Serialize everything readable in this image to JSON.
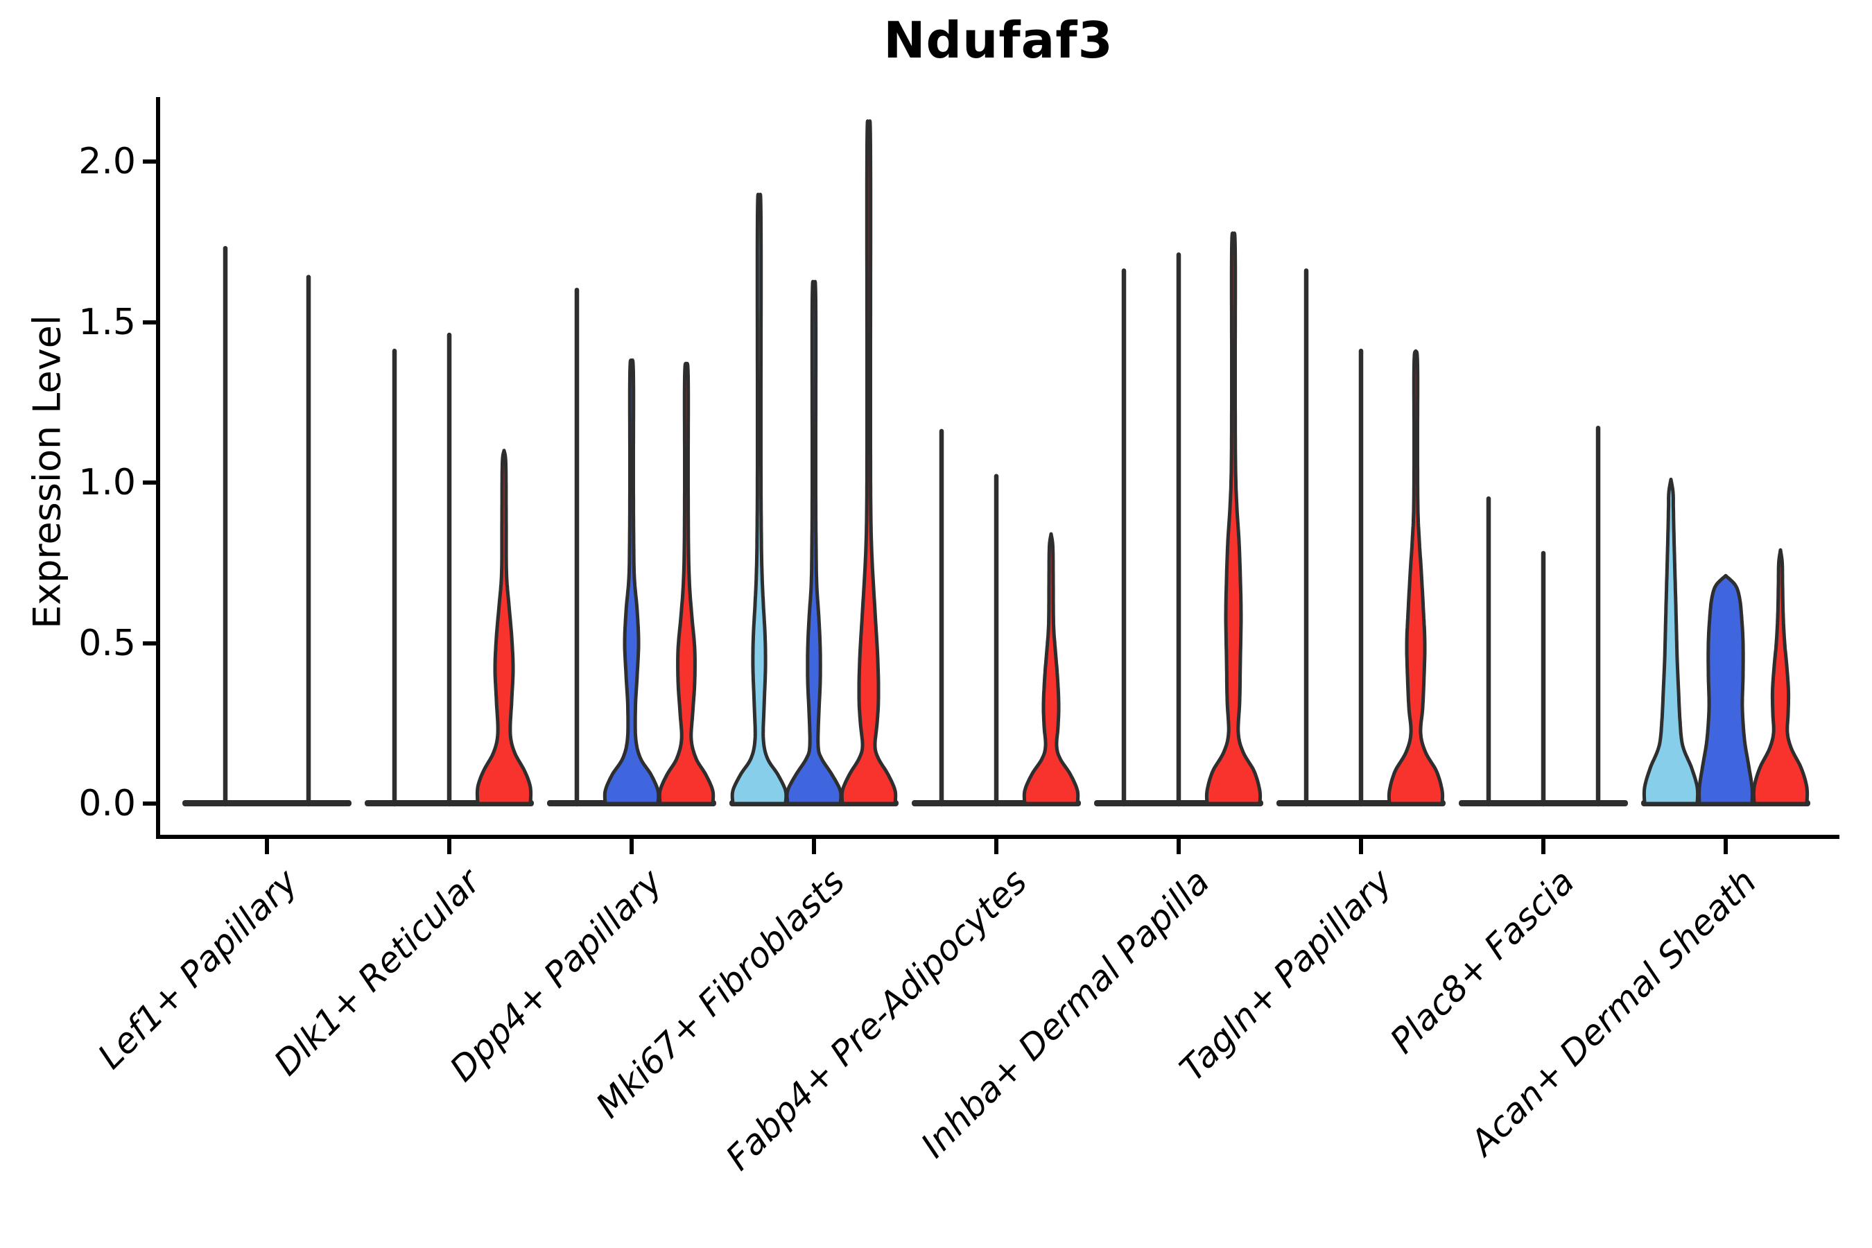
{
  "title": "Ndufaf3",
  "axes": {
    "ylabel": "Expression Level",
    "ytick_labels": [
      "0.0",
      "0.5",
      "1.0",
      "1.5",
      "2.0"
    ]
  },
  "palette": {
    "skyblue": "#87CEEB",
    "royalblue": "#4066DF",
    "red": "#F8322C",
    "edge": "#2E2E2E"
  },
  "chart_data": {
    "type": "violin",
    "title": "Ndufaf3",
    "xlabel": "",
    "ylabel": "Expression Level",
    "yticks": [
      0.0,
      0.5,
      1.0,
      1.5,
      2.0
    ],
    "ylim": [
      -0.1,
      2.2
    ],
    "grid": false,
    "legend": "none",
    "hue_order": [
      "skyblue",
      "royalblue",
      "red"
    ],
    "categories": [
      "Lef1+ Papillary",
      "Dlk1+ Reticular",
      "Dpp4+ Papillary",
      "Mki67+ Fibroblasts",
      "Fabp4+ Pre-Adipocytes",
      "Inhba+ Dermal Papilla",
      "Tagln+ Papillary",
      "Plac8+ Fascia",
      "Acan+ Dermal Sheath"
    ],
    "groups": [
      {
        "category": "Lef1+ Papillary",
        "violins": [
          {
            "hue": "skyblue",
            "kind": "spike",
            "max": 1.73
          },
          {
            "hue": "red",
            "kind": "spike",
            "max": 1.64
          }
        ]
      },
      {
        "category": "Dlk1+ Reticular",
        "violins": [
          {
            "hue": "skyblue",
            "kind": "spike",
            "max": 1.41
          },
          {
            "hue": "royalblue",
            "kind": "spike",
            "max": 1.46
          },
          {
            "hue": "red",
            "kind": "body",
            "max": 1.1,
            "profile": [
              [
                0,
                38
              ],
              [
                0.05,
                38
              ],
              [
                0.1,
                30
              ],
              [
                0.16,
                15
              ],
              [
                0.22,
                9
              ],
              [
                0.32,
                11
              ],
              [
                0.42,
                13
              ],
              [
                0.52,
                11
              ],
              [
                0.62,
                7
              ],
              [
                0.72,
                3.5
              ],
              [
                0.9,
                3
              ],
              [
                1.06,
                2.5
              ],
              [
                1.1,
                0
              ]
            ]
          }
        ]
      },
      {
        "category": "Dpp4+ Papillary",
        "violins": [
          {
            "hue": "skyblue",
            "kind": "spike",
            "max": 1.6
          },
          {
            "hue": "royalblue",
            "kind": "body",
            "max": 1.38,
            "profile": [
              [
                0,
                38
              ],
              [
                0.04,
                38
              ],
              [
                0.09,
                28
              ],
              [
                0.14,
                13
              ],
              [
                0.2,
                6
              ],
              [
                0.3,
                5.5
              ],
              [
                0.4,
                8
              ],
              [
                0.5,
                10
              ],
              [
                0.6,
                8
              ],
              [
                0.7,
                4
              ],
              [
                0.8,
                3
              ],
              [
                1.0,
                2.5
              ],
              [
                1.34,
                2.5
              ],
              [
                1.38,
                0
              ]
            ]
          },
          {
            "hue": "red",
            "kind": "body",
            "max": 1.37,
            "profile": [
              [
                0,
                38
              ],
              [
                0.04,
                38
              ],
              [
                0.09,
                28
              ],
              [
                0.14,
                14
              ],
              [
                0.2,
                7
              ],
              [
                0.28,
                9
              ],
              [
                0.38,
                12
              ],
              [
                0.48,
                12
              ],
              [
                0.58,
                8
              ],
              [
                0.68,
                4.5
              ],
              [
                0.8,
                3
              ],
              [
                1.0,
                2.5
              ],
              [
                1.33,
                2.5
              ],
              [
                1.37,
                0
              ]
            ]
          }
        ]
      },
      {
        "category": "Mki67+ Fibroblasts",
        "violins": [
          {
            "hue": "skyblue",
            "kind": "body",
            "max": 1.87,
            "profile": [
              [
                0,
                38
              ],
              [
                0.04,
                38
              ],
              [
                0.09,
                27
              ],
              [
                0.14,
                12
              ],
              [
                0.2,
                6
              ],
              [
                0.3,
                7
              ],
              [
                0.42,
                9
              ],
              [
                0.52,
                8.5
              ],
              [
                0.62,
                6
              ],
              [
                0.72,
                4
              ],
              [
                0.85,
                3
              ],
              [
                1.1,
                2.5
              ],
              [
                1.83,
                2.5
              ],
              [
                1.87,
                0
              ]
            ]
          },
          {
            "hue": "royalblue",
            "kind": "body",
            "max": 1.61,
            "profile": [
              [
                0,
                38
              ],
              [
                0.04,
                38
              ],
              [
                0.09,
                26
              ],
              [
                0.14,
                11
              ],
              [
                0.18,
                6
              ],
              [
                0.28,
                7
              ],
              [
                0.38,
                9
              ],
              [
                0.48,
                9
              ],
              [
                0.58,
                7
              ],
              [
                0.68,
                4
              ],
              [
                0.8,
                3
              ],
              [
                1.0,
                2.5
              ],
              [
                1.57,
                2.5
              ],
              [
                1.61,
                0
              ]
            ]
          },
          {
            "hue": "red",
            "kind": "body",
            "max": 2.09,
            "profile": [
              [
                0,
                38
              ],
              [
                0.04,
                38
              ],
              [
                0.09,
                28
              ],
              [
                0.14,
                14
              ],
              [
                0.18,
                9
              ],
              [
                0.25,
                12
              ],
              [
                0.33,
                14
              ],
              [
                0.45,
                13
              ],
              [
                0.6,
                9
              ],
              [
                0.75,
                5
              ],
              [
                0.9,
                3
              ],
              [
                1.2,
                2.5
              ],
              [
                2.05,
                2.5
              ],
              [
                2.09,
                0
              ]
            ]
          }
        ]
      },
      {
        "category": "Fabp4+ Pre-Adipocytes",
        "violins": [
          {
            "hue": "skyblue",
            "kind": "spike",
            "max": 1.16
          },
          {
            "hue": "royalblue",
            "kind": "spike",
            "max": 1.02
          },
          {
            "hue": "red",
            "kind": "body",
            "max": 0.84,
            "profile": [
              [
                0,
                38
              ],
              [
                0.04,
                38
              ],
              [
                0.09,
                28
              ],
              [
                0.14,
                13
              ],
              [
                0.18,
                8
              ],
              [
                0.24,
                10
              ],
              [
                0.31,
                11
              ],
              [
                0.4,
                9
              ],
              [
                0.48,
                6
              ],
              [
                0.56,
                3.5
              ],
              [
                0.7,
                3
              ],
              [
                0.8,
                2.5
              ],
              [
                0.84,
                0
              ]
            ]
          }
        ]
      },
      {
        "category": "Inhba+ Dermal Papilla",
        "violins": [
          {
            "hue": "skyblue",
            "kind": "spike",
            "max": 1.66
          },
          {
            "hue": "royalblue",
            "kind": "spike",
            "max": 1.71
          },
          {
            "hue": "red",
            "kind": "body",
            "max": 1.77,
            "profile": [
              [
                0,
                38
              ],
              [
                0.04,
                38
              ],
              [
                0.1,
                30
              ],
              [
                0.16,
                14
              ],
              [
                0.22,
                7
              ],
              [
                0.32,
                9
              ],
              [
                0.45,
                10
              ],
              [
                0.58,
                11
              ],
              [
                0.7,
                10
              ],
              [
                0.82,
                8
              ],
              [
                0.92,
                5
              ],
              [
                1.05,
                3
              ],
              [
                1.3,
                2.5
              ],
              [
                1.73,
                2.5
              ],
              [
                1.77,
                0
              ]
            ]
          }
        ]
      },
      {
        "category": "Tagln+ Papillary",
        "violins": [
          {
            "hue": "skyblue",
            "kind": "spike",
            "max": 1.66
          },
          {
            "hue": "royalblue",
            "kind": "spike",
            "max": 1.41
          },
          {
            "hue": "red",
            "kind": "body",
            "max": 1.41,
            "profile": [
              [
                0,
                38
              ],
              [
                0.04,
                38
              ],
              [
                0.1,
                30
              ],
              [
                0.16,
                14
              ],
              [
                0.22,
                7
              ],
              [
                0.3,
                10
              ],
              [
                0.4,
                12
              ],
              [
                0.5,
                13
              ],
              [
                0.6,
                11
              ],
              [
                0.72,
                8
              ],
              [
                0.82,
                5
              ],
              [
                0.92,
                3
              ],
              [
                1.1,
                2.5
              ],
              [
                1.37,
                2.5
              ],
              [
                1.41,
                0
              ]
            ]
          }
        ]
      },
      {
        "category": "Plac8+ Fascia",
        "violins": [
          {
            "hue": "skyblue",
            "kind": "spike",
            "max": 0.95
          },
          {
            "hue": "royalblue",
            "kind": "spike",
            "max": 0.78
          },
          {
            "hue": "red",
            "kind": "spike",
            "max": 1.17
          }
        ]
      },
      {
        "category": "Acan+ Dermal Sheath",
        "violins": [
          {
            "hue": "skyblue",
            "kind": "body",
            "max": 1.01,
            "profile": [
              [
                0,
                38
              ],
              [
                0.05,
                38
              ],
              [
                0.11,
                30
              ],
              [
                0.18,
                17
              ],
              [
                0.26,
                13
              ],
              [
                0.35,
                11
              ],
              [
                0.45,
                9
              ],
              [
                0.58,
                7.5
              ],
              [
                0.7,
                6
              ],
              [
                0.82,
                4.5
              ],
              [
                0.92,
                3.5
              ],
              [
                0.97,
                3
              ],
              [
                1.01,
                0
              ]
            ]
          },
          {
            "hue": "royalblue",
            "kind": "body",
            "max": 0.71,
            "profile": [
              [
                0,
                38
              ],
              [
                0.05,
                38
              ],
              [
                0.12,
                33
              ],
              [
                0.2,
                27
              ],
              [
                0.3,
                24
              ],
              [
                0.4,
                25
              ],
              [
                0.5,
                25
              ],
              [
                0.58,
                23
              ],
              [
                0.64,
                20
              ],
              [
                0.68,
                14
              ],
              [
                0.71,
                0
              ]
            ]
          },
          {
            "hue": "red",
            "kind": "body",
            "max": 0.79,
            "profile": [
              [
                0,
                38
              ],
              [
                0.05,
                38
              ],
              [
                0.11,
                30
              ],
              [
                0.17,
                16
              ],
              [
                0.22,
                10
              ],
              [
                0.28,
                11
              ],
              [
                0.35,
                11.5
              ],
              [
                0.43,
                9
              ],
              [
                0.5,
                6
              ],
              [
                0.58,
                4
              ],
              [
                0.68,
                3
              ],
              [
                0.75,
                2.5
              ],
              [
                0.79,
                0
              ]
            ]
          }
        ]
      }
    ]
  }
}
